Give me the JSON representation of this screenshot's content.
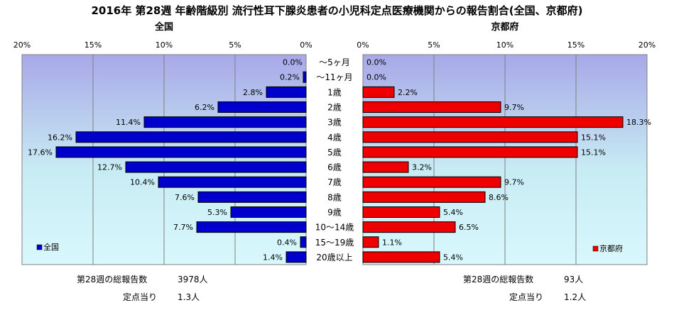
{
  "title": "2016年 第28週 年齢階級別 流行性耳下腺炎患者の小児科定点医療機関からの報告割合(全国、京都府)",
  "chart_data": {
    "type": "bar",
    "orientation": "horizontal-butterfly",
    "title": "2016年 第28週 年齢階級別 流行性耳下腺炎患者の小児科定点医療機関からの報告割合(全国、京都府)",
    "categories": [
      "～5ヶ月",
      "～11ヶ月",
      "1歳",
      "2歳",
      "3歳",
      "4歳",
      "5歳",
      "6歳",
      "7歳",
      "8歳",
      "9歳",
      "10～14歳",
      "15～19歳",
      "20歳以上"
    ],
    "xlim": [
      0,
      20
    ],
    "x_ticks": [
      "20%",
      "15%",
      "10%",
      "5%",
      "0%"
    ],
    "x_ticks_right": [
      "0%",
      "5%",
      "10%",
      "15%",
      "20%"
    ],
    "grid": true,
    "series": [
      {
        "name": "全国",
        "side": "left",
        "color": "#0000cc",
        "panel_title": "全国",
        "values": [
          0.0,
          0.2,
          2.8,
          6.2,
          11.4,
          16.2,
          17.6,
          12.7,
          10.4,
          7.6,
          5.3,
          7.7,
          0.4,
          1.4
        ],
        "labels": [
          "0.0%",
          "0.2%",
          "2.8%",
          "6.2%",
          "11.4%",
          "16.2%",
          "17.6%",
          "12.7%",
          "10.4%",
          "7.6%",
          "5.3%",
          "7.7%",
          "0.4%",
          "1.4%"
        ],
        "legend_position": "bottom-left"
      },
      {
        "name": "京都府",
        "side": "right",
        "color": "#ee0000",
        "panel_title": "京都府",
        "values": [
          0.0,
          0.0,
          2.2,
          9.7,
          18.3,
          15.1,
          15.1,
          3.2,
          9.7,
          8.6,
          5.4,
          6.5,
          1.1,
          5.4
        ],
        "labels": [
          "0.0%",
          "0.0%",
          "2.2%",
          "9.7%",
          "18.3%",
          "15.1%",
          "15.1%",
          "3.2%",
          "9.7%",
          "8.6%",
          "5.4%",
          "6.5%",
          "1.1%",
          "5.4%"
        ],
        "legend_position": "bottom-right"
      }
    ]
  },
  "footer": {
    "left": {
      "total_label": "第28週の総報告数",
      "total_value": "3978人",
      "per_label": "定点当り",
      "per_value": "1.3人"
    },
    "right": {
      "total_label": "第28週の総報告数",
      "total_value": "93人",
      "per_label": "定点当り",
      "per_value": "1.2人"
    }
  }
}
